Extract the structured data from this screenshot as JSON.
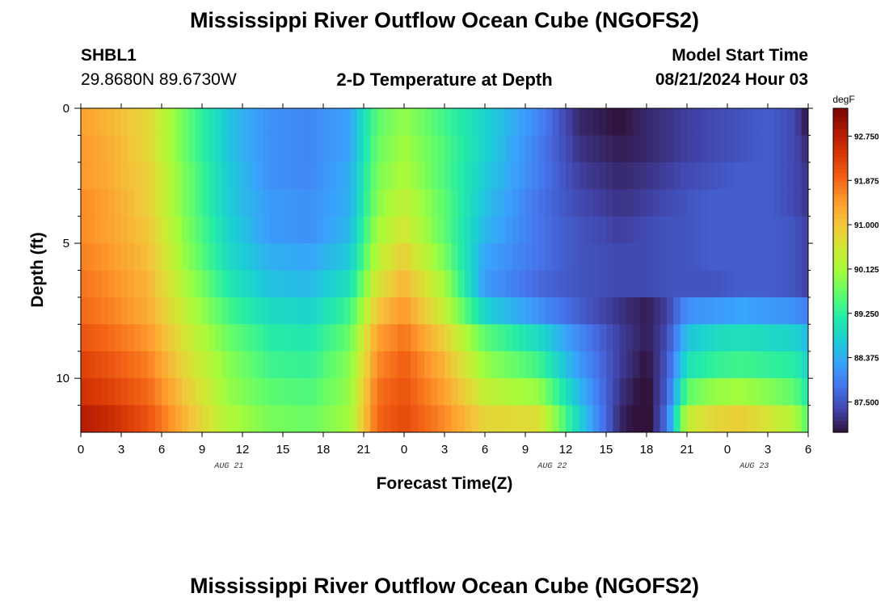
{
  "page": {
    "title_top": "Mississippi River Outflow Ocean Cube (NGOFS2)",
    "title_bottom": "Mississippi River Outflow Ocean Cube (NGOFS2)",
    "station_id": "SHBL1",
    "station_coords": "29.8680N  89.6730W",
    "plot_title": "2-D Temperature at Depth",
    "model_start_label": "Model Start Time",
    "model_start_value": "08/21/2024 Hour 03"
  },
  "chart_data": {
    "type": "heatmap",
    "variable": "Temperature",
    "xlabel": "Forecast Time(Z)",
    "ylabel": "Depth (ft)",
    "x_unit": "hours since 08/21/2024 00Z",
    "xlim": [
      0,
      54
    ],
    "ylim": [
      0,
      12
    ],
    "y_inverted": true,
    "x_tick_labels": [
      "0",
      "3",
      "6",
      "9",
      "12",
      "15",
      "18",
      "21",
      "0",
      "3",
      "6",
      "9",
      "12",
      "15",
      "18",
      "21",
      "0",
      "3",
      "6"
    ],
    "date_labels": [
      {
        "text": "AUG 21",
        "x": 11
      },
      {
        "text": "AUG 22",
        "x": 35
      },
      {
        "text": "AUG 23",
        "x": 50
      }
    ],
    "y_ticks": [
      0,
      5,
      10
    ],
    "y_minor_ticks": [
      1,
      2,
      3,
      4,
      6,
      7,
      8,
      9,
      11
    ],
    "colorbar": {
      "unit": "degF",
      "min": 86.9,
      "max": 93.3,
      "tick_values": [
        87.5,
        88.375,
        89.25,
        90.125,
        91.0,
        91.875,
        92.75
      ],
      "tick_labels": [
        "87.500",
        "88.375",
        "89.250",
        "90.125",
        "91.000",
        "91.875",
        "92.750"
      ],
      "colors": [
        "#30123b",
        "#4145ab",
        "#4675ed",
        "#39a2fc",
        "#1bcfd4",
        "#24eca6",
        "#61fc6c",
        "#a4fc3b",
        "#d1e834",
        "#f3c63a",
        "#fe9b2d",
        "#f36315",
        "#d93806",
        "#b11901",
        "#7a0402"
      ]
    },
    "depth_levels": [
      0.5,
      1.5,
      2.5,
      3.5,
      4.5,
      5.5,
      6.5,
      7.5,
      8.5,
      9.5,
      10.5,
      11.5
    ],
    "time_keys": [
      0,
      2,
      5,
      8,
      11,
      14,
      17,
      20,
      22,
      24,
      27,
      30,
      34,
      37,
      40,
      42,
      43.5,
      45,
      47,
      49,
      51,
      53,
      54
    ],
    "temperature_degF": [
      [
        91.4,
        91.2,
        90.8,
        89.6,
        88.6,
        88.1,
        88.0,
        88.3,
        89.6,
        90.0,
        89.4,
        88.8,
        88.0,
        87.1,
        86.9,
        87.1,
        87.2,
        87.3,
        87.4,
        87.5,
        87.6,
        87.4,
        86.9
      ],
      [
        91.5,
        91.3,
        90.8,
        89.6,
        88.6,
        88.1,
        88.0,
        88.3,
        89.7,
        90.1,
        89.5,
        88.8,
        87.9,
        87.2,
        87.0,
        87.1,
        87.2,
        87.3,
        87.4,
        87.5,
        87.6,
        87.4,
        87.1
      ],
      [
        91.5,
        91.3,
        90.9,
        89.7,
        88.7,
        88.1,
        88.0,
        88.4,
        89.8,
        90.2,
        89.5,
        88.7,
        87.9,
        87.3,
        87.1,
        87.2,
        87.3,
        87.4,
        87.5,
        87.6,
        87.6,
        87.4,
        87.2
      ],
      [
        91.6,
        91.4,
        90.9,
        89.7,
        88.7,
        88.2,
        88.1,
        88.4,
        89.9,
        90.4,
        89.6,
        88.6,
        87.8,
        87.4,
        87.2,
        87.3,
        87.4,
        87.5,
        87.6,
        87.6,
        87.6,
        87.4,
        87.2
      ],
      [
        91.6,
        91.4,
        91.0,
        89.8,
        88.8,
        88.2,
        88.1,
        88.5,
        90.1,
        90.6,
        89.6,
        88.5,
        87.8,
        87.5,
        87.3,
        87.4,
        87.5,
        87.5,
        87.6,
        87.6,
        87.6,
        87.5,
        87.3
      ],
      [
        91.7,
        91.5,
        91.1,
        89.9,
        88.9,
        88.4,
        88.3,
        88.7,
        90.3,
        90.9,
        89.8,
        88.3,
        87.8,
        87.5,
        87.4,
        87.4,
        87.5,
        87.5,
        87.6,
        87.6,
        87.6,
        87.5,
        87.3
      ],
      [
        91.8,
        91.6,
        91.2,
        90.1,
        89.1,
        88.6,
        88.5,
        89.0,
        90.6,
        91.2,
        90.1,
        88.2,
        87.7,
        87.5,
        87.4,
        87.4,
        87.5,
        87.5,
        87.5,
        87.6,
        87.6,
        87.5,
        87.3
      ],
      [
        91.9,
        91.7,
        91.3,
        90.3,
        89.4,
        88.9,
        88.8,
        89.4,
        91.0,
        91.5,
        90.4,
        88.8,
        88.1,
        87.6,
        87.2,
        87.0,
        87.3,
        88.1,
        88.2,
        88.3,
        88.2,
        88.1,
        87.9
      ],
      [
        92.1,
        91.9,
        91.5,
        90.5,
        89.7,
        89.2,
        89.1,
        89.7,
        91.4,
        91.8,
        90.9,
        89.6,
        88.9,
        88.0,
        87.3,
        87.0,
        87.4,
        88.6,
        88.9,
        89.0,
        88.9,
        88.8,
        88.5
      ],
      [
        92.3,
        92.1,
        91.7,
        90.7,
        89.9,
        89.4,
        89.3,
        89.9,
        91.6,
        92.0,
        91.2,
        90.0,
        89.4,
        88.2,
        87.3,
        86.9,
        87.5,
        89.0,
        89.3,
        89.4,
        89.3,
        89.2,
        88.8
      ],
      [
        92.5,
        92.3,
        91.9,
        90.9,
        90.0,
        89.6,
        89.5,
        90.0,
        91.8,
        92.1,
        91.4,
        90.4,
        90.0,
        88.5,
        87.2,
        86.8,
        87.6,
        89.6,
        90.0,
        90.1,
        89.9,
        89.6,
        89.1
      ],
      [
        92.8,
        92.6,
        92.1,
        91.1,
        90.2,
        89.8,
        89.7,
        90.1,
        91.9,
        92.2,
        91.6,
        90.8,
        90.7,
        88.8,
        87.1,
        86.7,
        87.8,
        90.4,
        90.8,
        90.9,
        90.6,
        90.2,
        89.5
      ]
    ]
  }
}
